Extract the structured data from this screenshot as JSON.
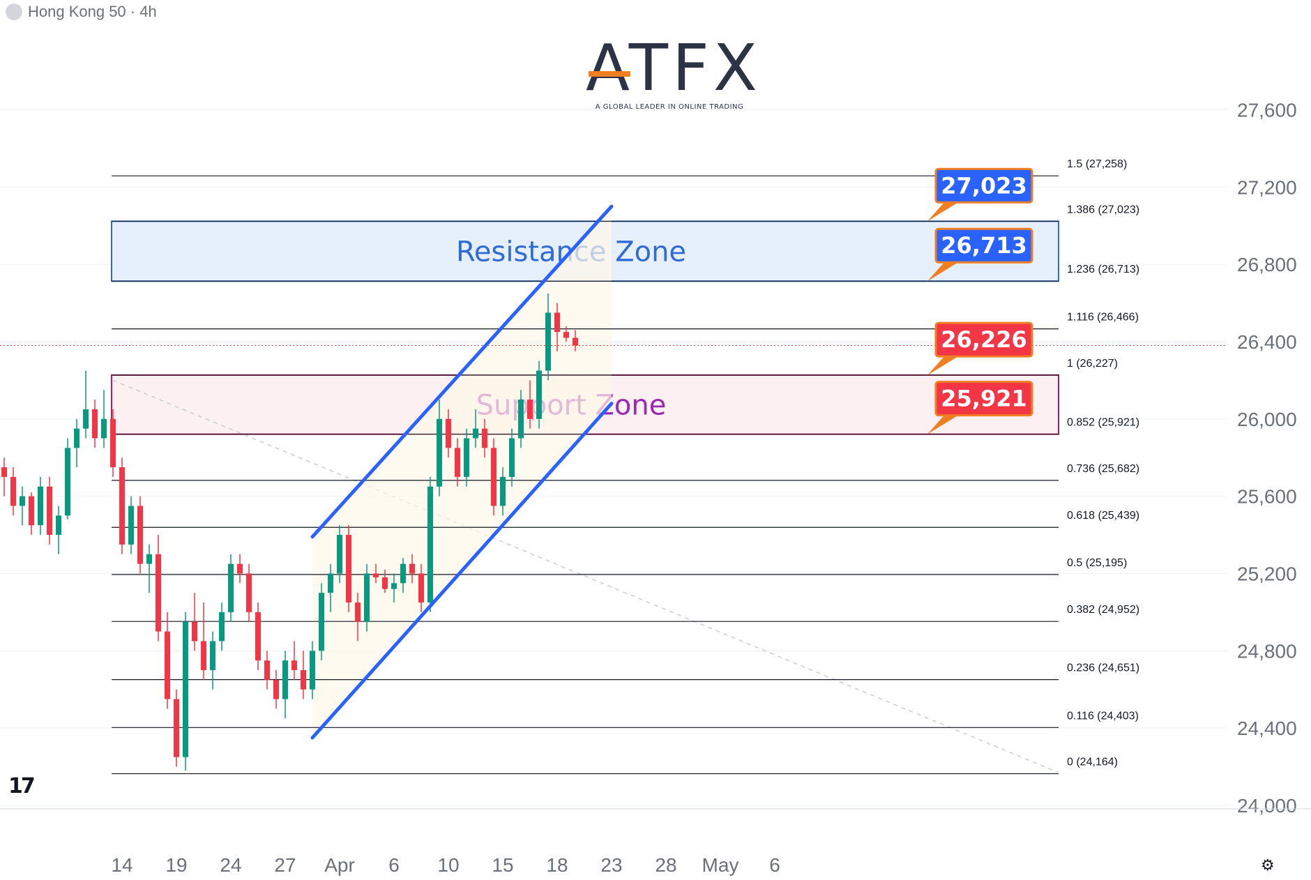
{
  "header": {
    "symbol": "Hong Kong 50 · 4h"
  },
  "logo": {
    "name": "ATFX",
    "tagline": "A GLOBAL LEADER IN ONLINE TRADING"
  },
  "chart_data": {
    "type": "candlestick",
    "ylim": [
      24000,
      27800
    ],
    "y_ticks": [
      {
        "value": 24000,
        "label": "24,000"
      },
      {
        "value": 24400,
        "label": "24,400"
      },
      {
        "value": 24800,
        "label": "24,800"
      },
      {
        "value": 25200,
        "label": "25,200"
      },
      {
        "value": 25600,
        "label": "25,600"
      },
      {
        "value": 26000,
        "label": "26,000"
      },
      {
        "value": 26400,
        "label": "26,400"
      },
      {
        "value": 26800,
        "label": "26,800"
      },
      {
        "value": 27200,
        "label": "27,200"
      },
      {
        "value": 27600,
        "label": "27,600"
      }
    ],
    "x_ticks": [
      {
        "bar": 13,
        "label": "14"
      },
      {
        "bar": 19,
        "label": "19"
      },
      {
        "bar": 25,
        "label": "24"
      },
      {
        "bar": 31,
        "label": "27"
      },
      {
        "bar": 37,
        "label": "Apr"
      },
      {
        "bar": 43,
        "label": "6"
      },
      {
        "bar": 49,
        "label": "10"
      },
      {
        "bar": 55,
        "label": "15"
      },
      {
        "bar": 61,
        "label": "18"
      },
      {
        "bar": 67,
        "label": "23"
      },
      {
        "bar": 73,
        "label": "28"
      },
      {
        "bar": 79,
        "label": "May"
      },
      {
        "bar": 85,
        "label": "6"
      }
    ],
    "candles": [
      [
        25750,
        25800,
        25600,
        25700
      ],
      [
        25700,
        25750,
        25500,
        25550
      ],
      [
        25550,
        25650,
        25450,
        25600
      ],
      [
        25600,
        25620,
        25400,
        25450
      ],
      [
        25450,
        25700,
        25400,
        25650
      ],
      [
        25650,
        25700,
        25350,
        25400
      ],
      [
        25400,
        25550,
        25300,
        25500
      ],
      [
        25500,
        25900,
        25480,
        25850
      ],
      [
        25850,
        26000,
        25750,
        25950
      ],
      [
        25950,
        26250,
        25900,
        26050
      ],
      [
        26050,
        26100,
        25850,
        25900
      ],
      [
        25900,
        26150,
        25850,
        26000
      ],
      [
        26000,
        26050,
        25700,
        25750
      ],
      [
        25750,
        25800,
        25300,
        25350
      ],
      [
        25350,
        25600,
        25300,
        25550
      ],
      [
        25550,
        25600,
        25200,
        25250
      ],
      [
        25250,
        25350,
        25100,
        25300
      ],
      [
        25300,
        25400,
        24850,
        24900
      ],
      [
        24900,
        25000,
        24500,
        24550
      ],
      [
        24550,
        24600,
        24200,
        24250
      ],
      [
        24250,
        25000,
        24180,
        24950
      ],
      [
        24950,
        25100,
        24800,
        24850
      ],
      [
        24850,
        25050,
        24650,
        24700
      ],
      [
        24700,
        24900,
        24600,
        24850
      ],
      [
        24850,
        25050,
        24800,
        25000
      ],
      [
        25000,
        25300,
        24950,
        25250
      ],
      [
        25250,
        25300,
        25150,
        25200
      ],
      [
        25200,
        25250,
        24950,
        25000
      ],
      [
        25000,
        25050,
        24700,
        24750
      ],
      [
        24750,
        24800,
        24600,
        24650
      ],
      [
        24650,
        24700,
        24500,
        24550
      ],
      [
        24550,
        24800,
        24450,
        24750
      ],
      [
        24750,
        24850,
        24650,
        24700
      ],
      [
        24700,
        24800,
        24550,
        24600
      ],
      [
        24600,
        24850,
        24550,
        24800
      ],
      [
        24800,
        25150,
        24750,
        25100
      ],
      [
        25100,
        25250,
        25000,
        25200
      ],
      [
        25200,
        25450,
        25150,
        25400
      ],
      [
        25400,
        25450,
        25000,
        25050
      ],
      [
        25050,
        25100,
        24850,
        24950
      ],
      [
        24950,
        25250,
        24900,
        25200
      ],
      [
        25200,
        25250,
        25150,
        25180
      ],
      [
        25180,
        25220,
        25100,
        25120
      ],
      [
        25120,
        25200,
        25050,
        25150
      ],
      [
        25150,
        25280,
        25100,
        25250
      ],
      [
        25250,
        25300,
        25150,
        25200
      ],
      [
        25200,
        25250,
        25000,
        25050
      ],
      [
        25050,
        25700,
        25000,
        25650
      ],
      [
        25650,
        26100,
        25600,
        26000
      ],
      [
        26000,
        26050,
        25800,
        25850
      ],
      [
        25850,
        25900,
        25650,
        25700
      ],
      [
        25700,
        25950,
        25650,
        25900
      ],
      [
        25900,
        26050,
        25850,
        25950
      ],
      [
        25950,
        26000,
        25800,
        25850
      ],
      [
        25850,
        25900,
        25500,
        25550
      ],
      [
        25550,
        25750,
        25500,
        25700
      ],
      [
        25700,
        25950,
        25650,
        25900
      ],
      [
        25900,
        26150,
        25850,
        26100
      ],
      [
        26100,
        26200,
        25950,
        26000
      ],
      [
        26000,
        26300,
        25950,
        26250
      ],
      [
        26250,
        26650,
        26200,
        26550
      ],
      [
        26550,
        26600,
        26350,
        26450
      ],
      [
        26450,
        26480,
        26400,
        26420
      ],
      [
        26420,
        26460,
        26350,
        26380
      ]
    ],
    "fib_levels": [
      {
        "ratio": "1.5",
        "value": 27258,
        "label": "1.5 (27,258)"
      },
      {
        "ratio": "1.386",
        "value": 27023,
        "label": "1.386 (27,023)"
      },
      {
        "ratio": "1.236",
        "value": 26713,
        "label": "1.236 (26,713)"
      },
      {
        "ratio": "1.116",
        "value": 26466,
        "label": "1.116 (26,466)"
      },
      {
        "ratio": "1",
        "value": 26227,
        "label": "1 (26,227)"
      },
      {
        "ratio": "0.852",
        "value": 25921,
        "label": "0.852 (25,921)"
      },
      {
        "ratio": "0.736",
        "value": 25682,
        "label": "0.736 (25,682)"
      },
      {
        "ratio": "0.618",
        "value": 25439,
        "label": "0.618 (25,439)"
      },
      {
        "ratio": "0.5",
        "value": 25195,
        "label": "0.5 (25,195)"
      },
      {
        "ratio": "0.382",
        "value": 24952,
        "label": "0.382 (24,952)"
      },
      {
        "ratio": "0.236",
        "value": 24651,
        "label": "0.236 (24,651)"
      },
      {
        "ratio": "0.116",
        "value": 24403,
        "label": "0.116 (24,403)"
      },
      {
        "ratio": "0",
        "value": 24164,
        "label": "0 (24,164)"
      }
    ],
    "zones": [
      {
        "name": "Resistance Zone",
        "from": 26713,
        "to": 27023,
        "fill": "#e6effc",
        "border": "#2f6bd6",
        "text_color": "#2f6bd6"
      },
      {
        "name": "Support Zone",
        "from": 25921,
        "to": 26227,
        "fill": "#fcf0f2",
        "border": "#c2185b",
        "text_color": "#9c27b0"
      }
    ],
    "price_labels": [
      {
        "text": "27,023",
        "value": 27023,
        "color": "#2962ff"
      },
      {
        "text": "26,713",
        "value": 26713,
        "color": "#2962ff"
      },
      {
        "text": "26,226",
        "value": 26226,
        "color": "#f23645"
      },
      {
        "text": "25,921",
        "value": 25921,
        "color": "#f23645"
      }
    ],
    "channel": {
      "upper": {
        "from": {
          "bar": 34,
          "value": 25390
        },
        "to": {
          "bar": 67,
          "value": 27100
        }
      },
      "lower": {
        "from": {
          "bar": 34,
          "value": 24350
        },
        "to": {
          "bar": 67,
          "value": 26080
        }
      },
      "color": "#2962ff"
    },
    "current_price": 26380,
    "colors": {
      "up": "#089981",
      "down": "#f23645"
    }
  }
}
